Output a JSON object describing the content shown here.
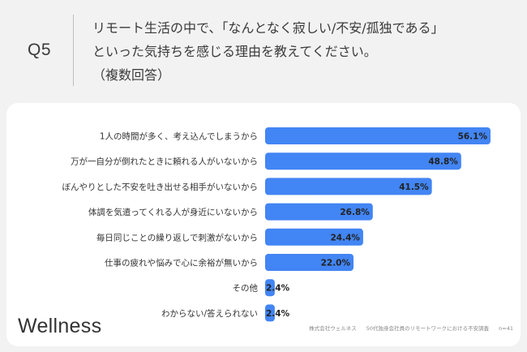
{
  "header": {
    "qnum": "Q5",
    "question_lines": [
      "リモート生活の中で、「なんとなく寂しい/不安/孤独である」",
      "といった気持ちを感じる理由を教えてください。",
      "（複数回答）"
    ]
  },
  "footer": {
    "brand": "Wellness",
    "company": "株式会社ウェルネス",
    "survey": "50代独身会社員のリモートワークにおける不安調査",
    "n": "n=41"
  },
  "chart_data": {
    "type": "bar",
    "orientation": "horizontal",
    "categories": [
      "1人の時間が多く、考え込んでしまうから",
      "万が一自分が倒れたときに頼れる人がいないから",
      "ぼんやりとした不安を吐き出せる相手がいないから",
      "体調を気遣ってくれる人が身近にいないから",
      "毎日同じことの繰り返しで刺激がないから",
      "仕事の疲れや悩みで心に余裕が無いから",
      "その他",
      "わからない/答えられない"
    ],
    "values": [
      56.1,
      48.8,
      41.5,
      26.8,
      24.4,
      22.0,
      2.4,
      2.4
    ],
    "value_labels": [
      "56.1%",
      "48.8%",
      "41.5%",
      "26.8%",
      "24.4%",
      "22.0%",
      "2.4%",
      "2.4%"
    ],
    "color": "#4285f4",
    "xlim": [
      0,
      56.1
    ],
    "grid": false,
    "legend": "none"
  }
}
